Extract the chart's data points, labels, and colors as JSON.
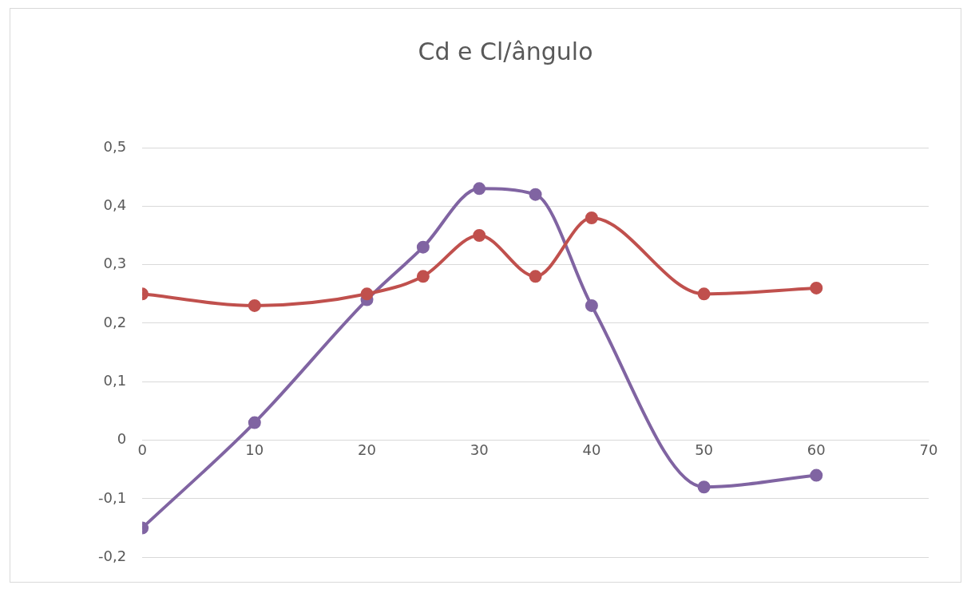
{
  "chart_data": {
    "type": "line",
    "title": "Cd e Cl/ângulo",
    "x": [
      0,
      10,
      20,
      25,
      30,
      35,
      40,
      50,
      60
    ],
    "series": [
      {
        "color": "#c0504d",
        "values": [
          0.25,
          0.23,
          0.25,
          0.28,
          0.35,
          0.28,
          0.38,
          0.25,
          0.26
        ]
      },
      {
        "color": "#8064a2",
        "values": [
          -0.15,
          0.03,
          0.24,
          0.33,
          0.43,
          0.42,
          0.23,
          -0.08,
          -0.06
        ]
      }
    ],
    "xlim": [
      0,
      70
    ],
    "xticks": [
      0,
      10,
      20,
      30,
      40,
      50,
      60,
      70
    ],
    "ylim": [
      -0.2,
      0.5
    ],
    "yticks": [
      {
        "value": -0.2,
        "label": "-0,2"
      },
      {
        "value": -0.1,
        "label": "-0,1"
      },
      {
        "value": 0,
        "label": "0"
      },
      {
        "value": 0.1,
        "label": "0,1"
      },
      {
        "value": 0.2,
        "label": "0,2"
      },
      {
        "value": 0.3,
        "label": "0,3"
      },
      {
        "value": 0.4,
        "label": "0,4"
      },
      {
        "value": 0.5,
        "label": "0,5"
      }
    ],
    "grid": "y",
    "marker": "circle"
  }
}
